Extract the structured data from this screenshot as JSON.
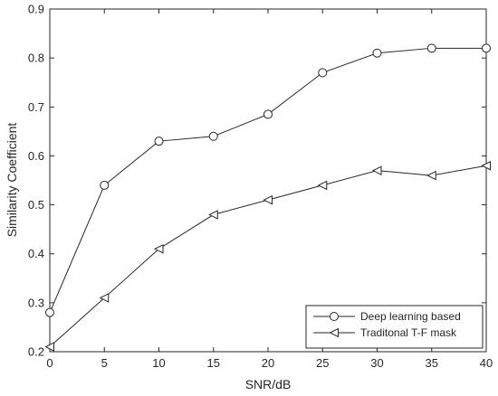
{
  "chart_data": {
    "type": "line",
    "title": "",
    "xlabel": "SNR/dB",
    "ylabel": "Similarity Coefficient",
    "x": [
      0,
      5,
      10,
      15,
      20,
      25,
      30,
      35,
      40
    ],
    "xlim": [
      0,
      40
    ],
    "ylim": [
      0.2,
      0.9
    ],
    "xticks": [
      "0",
      "5",
      "10",
      "15",
      "20",
      "25",
      "30",
      "35",
      "40"
    ],
    "yticks": [
      "0.2",
      "0.3",
      "0.4",
      "0.5",
      "0.6",
      "0.7",
      "0.8",
      "0.9"
    ],
    "grid": false,
    "legend_position": "bottom-right",
    "series": [
      {
        "name": "Deep learning based",
        "marker": "circle",
        "values": [
          0.28,
          0.54,
          0.63,
          0.64,
          0.685,
          0.77,
          0.81,
          0.82,
          0.82
        ]
      },
      {
        "name": "Traditonal T-F mask",
        "marker": "left-triangle",
        "values": [
          0.21,
          0.31,
          0.41,
          0.48,
          0.51,
          0.54,
          0.57,
          0.56,
          0.58
        ]
      }
    ],
    "colors": {
      "line": "#262626",
      "axes": "#262626",
      "background": "#ffffff"
    }
  }
}
